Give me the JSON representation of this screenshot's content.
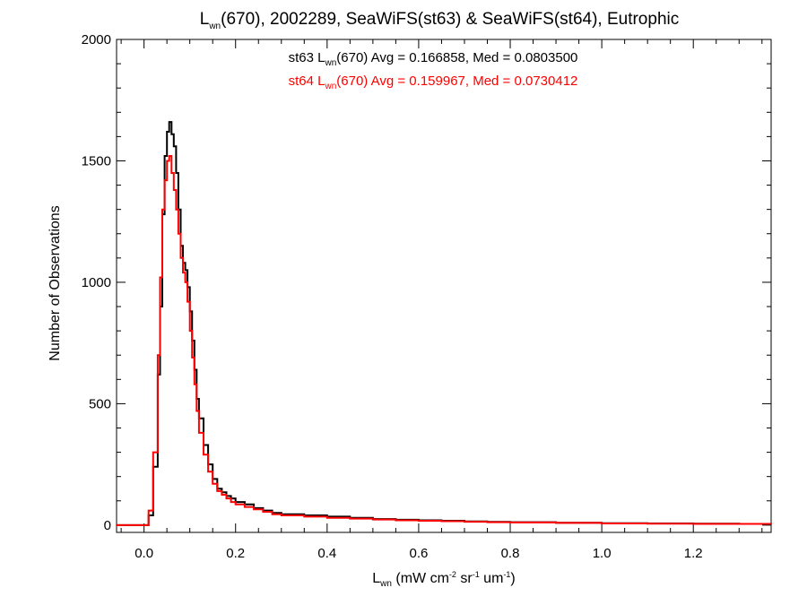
{
  "chart_data": {
    "type": "line",
    "title": {
      "prefix": "L",
      "prefix_sub": "wn",
      "rest": "(670), 2002289, SeaWiFS(st63) & SeaWiFS(st64), Eutrophic"
    },
    "xlabel": {
      "prefix": "L",
      "prefix_sub": "wn",
      "parts": [
        {
          "t": " (mW cm",
          "sup": "-2"
        },
        {
          "t": " sr",
          "sup": "-1"
        },
        {
          "t": " um",
          "sup": "-1"
        },
        {
          "t": ")"
        }
      ]
    },
    "ylabel": "Number of Observations",
    "xlim": [
      -0.06,
      1.37
    ],
    "ylim": [
      -30,
      2000
    ],
    "x_ticks": [
      "0.0",
      "0.2",
      "0.4",
      "0.6",
      "0.8",
      "1.0",
      "1.2"
    ],
    "x_tick_values": [
      0.0,
      0.2,
      0.4,
      0.6,
      0.8,
      1.0,
      1.2
    ],
    "y_ticks": [
      "0",
      "500",
      "1000",
      "1500",
      "2000"
    ],
    "y_tick_values": [
      0,
      500,
      1000,
      1500,
      2000
    ],
    "grid": false,
    "step": true,
    "series": [
      {
        "color": "#000000",
        "annotation": {
          "pre": "st63 L",
          "sub": "wn",
          "post": "(670) Avg = 0.166858, Med = 0.0803500"
        },
        "points": [
          [
            -0.06,
            0
          ],
          [
            0.0,
            0
          ],
          [
            0.01,
            40
          ],
          [
            0.02,
            240
          ],
          [
            0.03,
            620
          ],
          [
            0.035,
            900
          ],
          [
            0.04,
            1280
          ],
          [
            0.045,
            1520
          ],
          [
            0.05,
            1620
          ],
          [
            0.055,
            1660
          ],
          [
            0.06,
            1610
          ],
          [
            0.065,
            1560
          ],
          [
            0.07,
            1450
          ],
          [
            0.075,
            1300
          ],
          [
            0.08,
            1150
          ],
          [
            0.085,
            1080
          ],
          [
            0.09,
            1050
          ],
          [
            0.095,
            980
          ],
          [
            0.1,
            880
          ],
          [
            0.105,
            760
          ],
          [
            0.11,
            640
          ],
          [
            0.115,
            520
          ],
          [
            0.12,
            440
          ],
          [
            0.13,
            330
          ],
          [
            0.14,
            250
          ],
          [
            0.15,
            190
          ],
          [
            0.16,
            150
          ],
          [
            0.17,
            135
          ],
          [
            0.18,
            120
          ],
          [
            0.19,
            110
          ],
          [
            0.2,
            95
          ],
          [
            0.22,
            85
          ],
          [
            0.24,
            70
          ],
          [
            0.26,
            60
          ],
          [
            0.28,
            50
          ],
          [
            0.3,
            45
          ],
          [
            0.35,
            40
          ],
          [
            0.4,
            35
          ],
          [
            0.45,
            30
          ],
          [
            0.5,
            25
          ],
          [
            0.55,
            22
          ],
          [
            0.6,
            20
          ],
          [
            0.65,
            18
          ],
          [
            0.7,
            15
          ],
          [
            0.75,
            13
          ],
          [
            0.8,
            12
          ],
          [
            0.9,
            10
          ],
          [
            1.0,
            8
          ],
          [
            1.1,
            7
          ],
          [
            1.2,
            6
          ],
          [
            1.3,
            5
          ],
          [
            1.37,
            5
          ]
        ]
      },
      {
        "color": "#ff0000",
        "annotation": {
          "pre": "st64 L",
          "sub": "wn",
          "post": "(670) Avg = 0.159967, Med = 0.0730412"
        },
        "points": [
          [
            -0.06,
            0
          ],
          [
            0.0,
            0
          ],
          [
            0.01,
            60
          ],
          [
            0.02,
            300
          ],
          [
            0.03,
            700
          ],
          [
            0.035,
            1020
          ],
          [
            0.04,
            1300
          ],
          [
            0.045,
            1420
          ],
          [
            0.05,
            1500
          ],
          [
            0.055,
            1520
          ],
          [
            0.06,
            1450
          ],
          [
            0.065,
            1380
          ],
          [
            0.07,
            1300
          ],
          [
            0.075,
            1200
          ],
          [
            0.08,
            1100
          ],
          [
            0.085,
            1040
          ],
          [
            0.09,
            1000
          ],
          [
            0.095,
            920
          ],
          [
            0.1,
            800
          ],
          [
            0.105,
            690
          ],
          [
            0.11,
            580
          ],
          [
            0.115,
            470
          ],
          [
            0.12,
            380
          ],
          [
            0.13,
            290
          ],
          [
            0.14,
            220
          ],
          [
            0.15,
            170
          ],
          [
            0.16,
            140
          ],
          [
            0.17,
            125
          ],
          [
            0.18,
            110
          ],
          [
            0.19,
            95
          ],
          [
            0.2,
            85
          ],
          [
            0.22,
            75
          ],
          [
            0.24,
            65
          ],
          [
            0.26,
            55
          ],
          [
            0.28,
            45
          ],
          [
            0.3,
            40
          ],
          [
            0.35,
            35
          ],
          [
            0.4,
            30
          ],
          [
            0.45,
            27
          ],
          [
            0.5,
            23
          ],
          [
            0.55,
            20
          ],
          [
            0.6,
            18
          ],
          [
            0.65,
            16
          ],
          [
            0.7,
            14
          ],
          [
            0.75,
            12
          ],
          [
            0.8,
            11
          ],
          [
            0.9,
            9
          ],
          [
            1.0,
            7
          ],
          [
            1.1,
            6
          ],
          [
            1.2,
            5
          ],
          [
            1.3,
            5
          ],
          [
            1.37,
            4
          ]
        ]
      }
    ]
  }
}
